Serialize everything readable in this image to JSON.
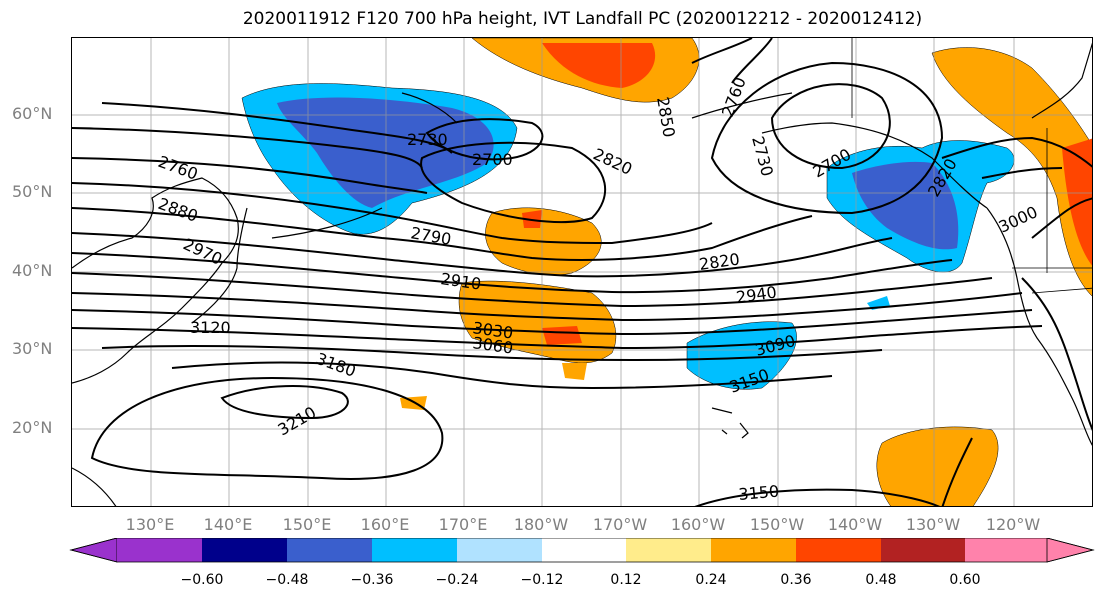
{
  "title": "2020011912 F120 700 hPa height, IVT Landfall PC (2020012212 - 2020012412)",
  "lat_labels": [
    "60°N",
    "50°N",
    "40°N",
    "30°N",
    "20°N"
  ],
  "lon_labels": [
    "130°E",
    "140°E",
    "150°E",
    "160°E",
    "170°E",
    "180°W",
    "170°W",
    "160°W",
    "150°W",
    "140°W",
    "130°W",
    "120°W"
  ],
  "contour_labels": [
    "2760",
    "2730",
    "2700",
    "2820",
    "2850",
    "2760",
    "2730",
    "2700",
    "2820",
    "3000",
    "2880",
    "2970",
    "2790",
    "2820",
    "2910",
    "2940",
    "3030",
    "3060",
    "3090",
    "3120",
    "3150",
    "3180",
    "3210",
    "3150"
  ],
  "colorbar": {
    "ticks": [
      "−0.60",
      "−0.48",
      "−0.36",
      "−0.24",
      "−0.12",
      "0.12",
      "0.24",
      "0.36",
      "0.48",
      "0.60"
    ],
    "colors": [
      "#9a32cd",
      "#00008b",
      "#3a5fcd",
      "#00bfff",
      "#b0e2ff",
      "#ffffff",
      "#ffec8b",
      "#ffa500",
      "#ff4500",
      "#b22222",
      "#ff82ab"
    ]
  }
}
